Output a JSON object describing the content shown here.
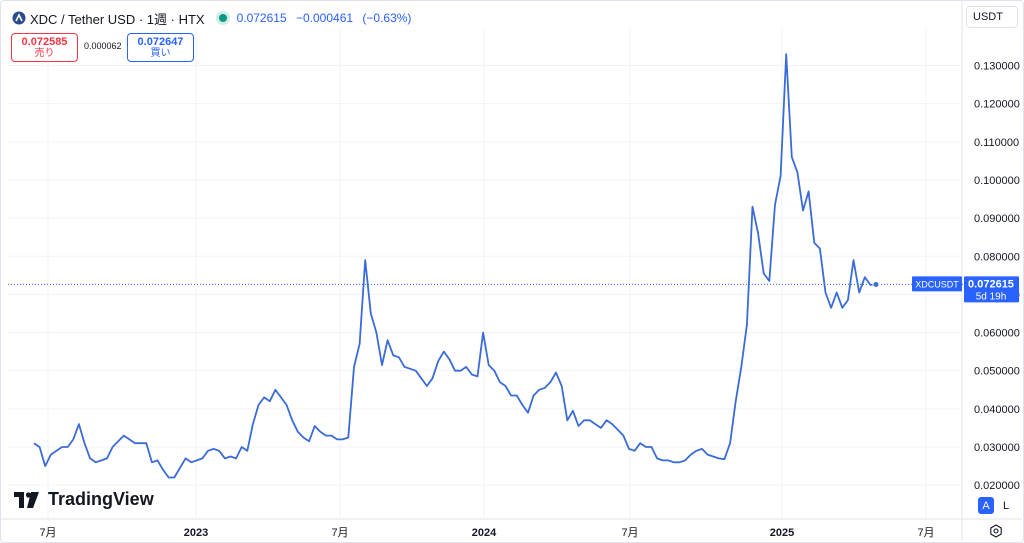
{
  "header": {
    "title": "XDC / Tether USD · 1週 · HTX",
    "last": "0.072615",
    "change": "−0.000461",
    "change_pct": "(−0.63%)"
  },
  "currency": "USDT",
  "trade": {
    "sell_price": "0.072585",
    "sell_label": "売り",
    "spread": "0.000062",
    "buy_price": "0.072647",
    "buy_label": "買い"
  },
  "brand": "TradingView",
  "scale_buttons": {
    "auto": "A",
    "log": "L"
  },
  "colors": {
    "line": "#3a6bd6",
    "accent": "#2962ff",
    "sell": "#f23645",
    "live": "#089981"
  },
  "chart_data": {
    "type": "line",
    "y_range": [
      0.016,
      0.136
    ],
    "y_ticks": [
      "0.130000",
      "0.120000",
      "0.110000",
      "0.100000",
      "0.090000",
      "0.080000",
      "0.070000",
      "0.060000",
      "0.050000",
      "0.040000",
      "0.030000",
      "0.020000"
    ],
    "x_labels": [
      "7月",
      "2023",
      "7月",
      "2024",
      "7月",
      "2025",
      "7月"
    ],
    "last_label": {
      "symbol": "XDCUSDT",
      "value": "0.072615",
      "countdown": "5d 19h"
    },
    "x_start_week": 0,
    "x_end_week": 149,
    "values": [
      0.031,
      0.03,
      0.025,
      0.028,
      0.029,
      0.03,
      0.03,
      0.032,
      0.036,
      0.031,
      0.027,
      0.026,
      0.0265,
      0.027,
      0.03,
      0.0315,
      0.033,
      0.032,
      0.031,
      0.031,
      0.031,
      0.026,
      0.0265,
      0.024,
      0.022,
      0.022,
      0.0245,
      0.027,
      0.026,
      0.0265,
      0.027,
      0.029,
      0.0295,
      0.029,
      0.027,
      0.0275,
      0.027,
      0.03,
      0.029,
      0.036,
      0.041,
      0.043,
      0.042,
      0.045,
      0.043,
      0.041,
      0.037,
      0.034,
      0.0325,
      0.0315,
      0.0355,
      0.034,
      0.033,
      0.033,
      0.032,
      0.032,
      0.0325,
      0.051,
      0.057,
      0.079,
      0.065,
      0.06,
      0.0515,
      0.058,
      0.054,
      0.0535,
      0.051,
      0.0505,
      0.05,
      0.048,
      0.046,
      0.048,
      0.0525,
      0.055,
      0.053,
      0.05,
      0.05,
      0.051,
      0.049,
      0.0485,
      0.06,
      0.0515,
      0.05,
      0.047,
      0.046,
      0.0435,
      0.0435,
      0.041,
      0.039,
      0.0435,
      0.045,
      0.0455,
      0.047,
      0.0495,
      0.046,
      0.037,
      0.0395,
      0.0355,
      0.037,
      0.037,
      0.036,
      0.035,
      0.037,
      0.036,
      0.0345,
      0.033,
      0.0295,
      0.029,
      0.031,
      0.03,
      0.03,
      0.027,
      0.0265,
      0.0265,
      0.026,
      0.026,
      0.0265,
      0.028,
      0.029,
      0.0295,
      0.028,
      0.0275,
      0.027,
      0.0268,
      0.031,
      0.042,
      0.051,
      0.062,
      0.093,
      0.086,
      0.0755,
      0.0735,
      0.0935,
      0.101,
      0.133,
      0.106,
      0.102,
      0.092,
      0.097,
      0.0835,
      0.082,
      0.0705,
      0.0665,
      0.0705,
      0.0665,
      0.0685,
      0.079,
      0.0705,
      0.0745,
      0.0725,
      0.0726
    ]
  }
}
